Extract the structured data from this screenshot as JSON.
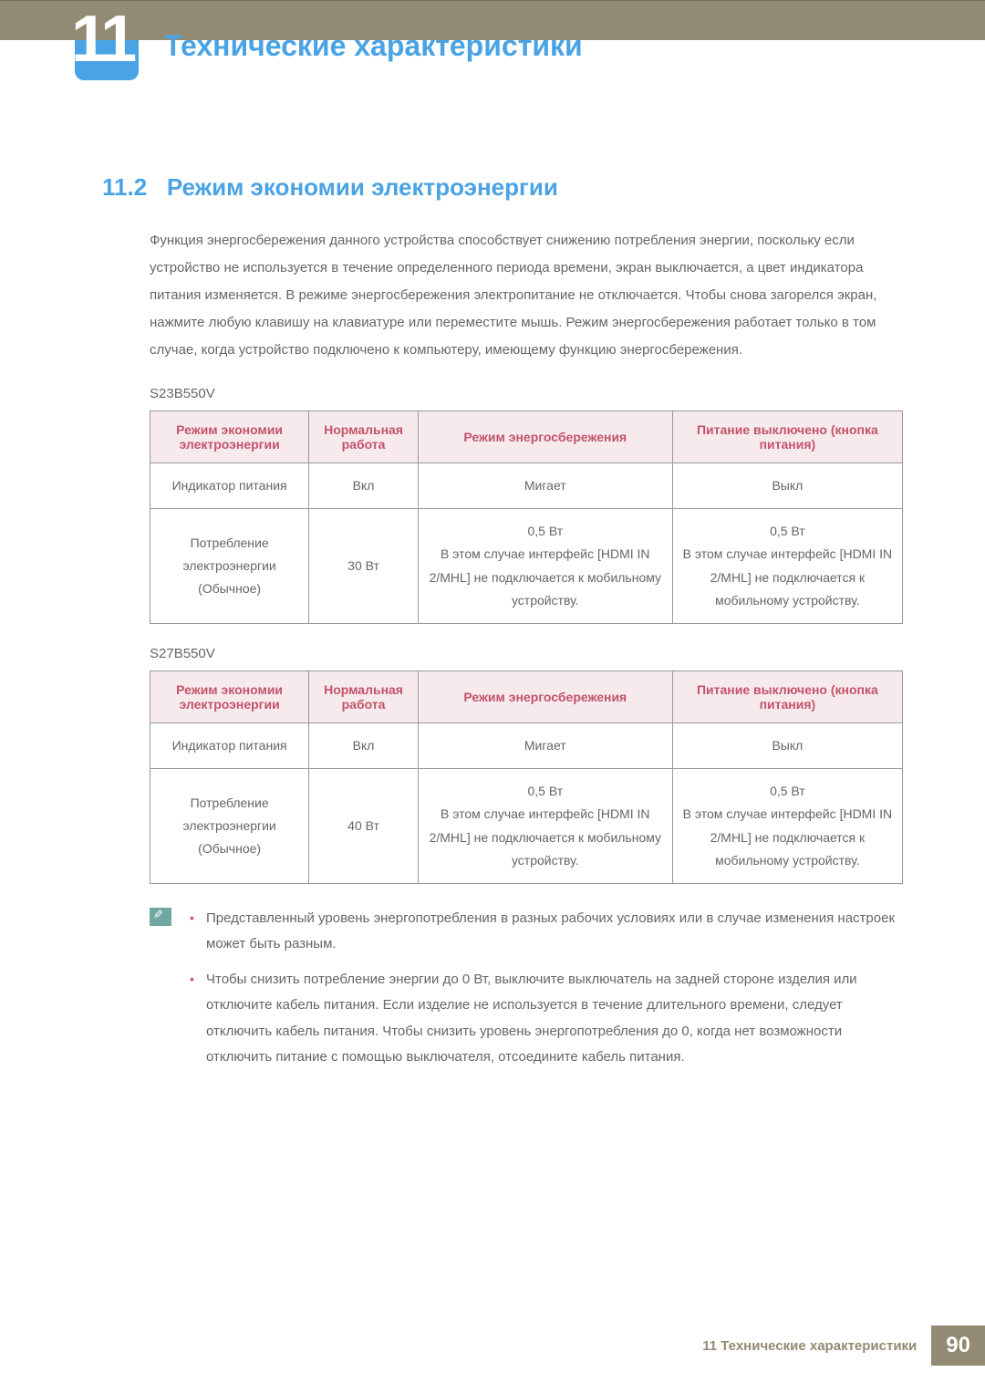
{
  "chapter": {
    "number": "11",
    "title": "Технические характеристики"
  },
  "section": {
    "number": "11.2",
    "title": "Режим экономии электроэнергии"
  },
  "intro": "Функция энергосбережения данного устройства способствует снижению потребления энергии, поскольку если устройство не используется в течение определенного периода времени, экран выключается, а цвет индикатора питания изменяется. В режиме энергосбережения электропитание не отключается. Чтобы снова загорелся экран, нажмите любую клавишу на клавиатуре или переместите мышь. Режим энергосбережения работает только в том случае, когда устройство подключено к компьютеру, имеющему функцию энергосбережения.",
  "tables": [
    {
      "model": "S23B550V",
      "columns": [
        "Режим экономии электроэнергии",
        "Нормальная работа",
        "Режим энергосбережения",
        "Питание выключено (кнопка питания)"
      ],
      "rows": [
        [
          "Индикатор питания",
          "Вкл",
          "Мигает",
          "Выкл"
        ],
        [
          "Потребление электроэнергии (Обычное)",
          "30 Вт",
          "0,5 Вт\nВ этом случае интерфейс [HDMI IN 2/MHL] не подключается к мобильному устройству.",
          "0,5 Вт\nВ этом случае интерфейс [HDMI IN 2/MHL] не подключается к мобильному устройству."
        ]
      ]
    },
    {
      "model": "S27B550V",
      "columns": [
        "Режим экономии электроэнергии",
        "Нормальная работа",
        "Режим энергосбережения",
        "Питание выключено (кнопка питания)"
      ],
      "rows": [
        [
          "Индикатор питания",
          "Вкл",
          "Мигает",
          "Выкл"
        ],
        [
          "Потребление электроэнергии (Обычное)",
          "40 Вт",
          "0,5 Вт\nВ этом случае интерфейс [HDMI IN 2/MHL] не подключается к мобильному устройству.",
          "0,5 Вт\nВ этом случае интерфейс [HDMI IN 2/MHL] не подключается к мобильному устройству."
        ]
      ]
    }
  ],
  "notes": [
    "Представленный уровень энергопотребления в разных рабочих условиях или в случае изменения настроек может быть разным.",
    "Чтобы снизить потребление энергии до 0 Вт, выключите выключатель на задней стороне изделия или отключите кабель питания. Если изделие не используется в течение длительного времени, следует отключить кабель питания. Чтобы снизить уровень энергопотребления до 0, когда нет возможности отключить питание с помощью выключателя, отсоедините кабель питания."
  ],
  "footer": {
    "text": "11 Технические характеристики",
    "page": "90"
  },
  "colors": {
    "header_band": "#928a72",
    "accent_blue": "#4aa3e4",
    "table_header_bg": "#f6eaec",
    "table_header_text": "#c3546a",
    "body_text": "#666666",
    "border": "#999999"
  }
}
